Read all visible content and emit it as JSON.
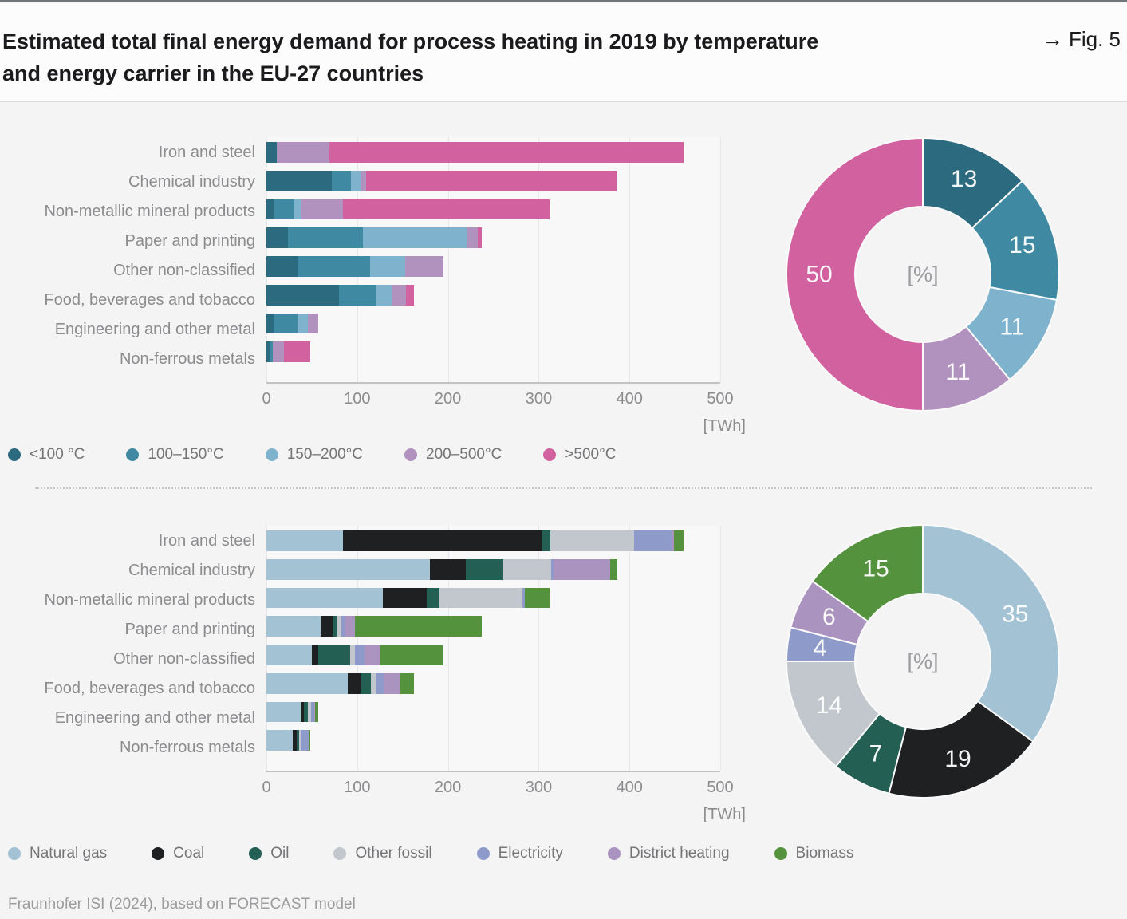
{
  "header": {
    "title": "Estimated total final energy demand for process heating in 2019 by temperature and energy carrier in the EU-27 countries",
    "title_lines": [
      "Estimated total final energy demand for process heating in 2019 by temperature",
      "and energy carrier in the EU-27 countries"
    ],
    "fig_label": "→ Fig. 5"
  },
  "footer": {
    "source": "Fraunhofer ISI (2024), based on FORECAST model"
  },
  "chart_data": [
    {
      "id": "energy-demand-by-temperature",
      "type": "bar",
      "orientation": "horizontal",
      "stacked": true,
      "unit_label": "[TWh]",
      "xlim": [
        0,
        500
      ],
      "ticks": [
        0,
        100,
        200,
        300,
        400,
        500
      ],
      "grid": true,
      "legend_position": "bottom",
      "categories": [
        "Iron and steel",
        "Chemical industry",
        "Non-metallic mineral products",
        "Paper and printing",
        "Other non-classified",
        "Food, beverages and tobacco",
        "Engineering and other metal",
        "Non-ferrous metals"
      ],
      "series": [
        {
          "name": "<100 °C",
          "color": "#2b6a7f",
          "values": [
            11,
            72,
            9,
            24,
            34,
            80,
            8,
            4
          ]
        },
        {
          "name": "100–150°C",
          "color": "#3f8aa2",
          "values": [
            0,
            21,
            21,
            82,
            80,
            41,
            26,
            3
          ]
        },
        {
          "name": "150–200°C",
          "color": "#7fb2cc",
          "values": [
            0,
            12,
            9,
            115,
            39,
            17,
            12,
            0
          ]
        },
        {
          "name": "200–500°C",
          "color": "#b192be",
          "values": [
            58,
            5,
            45,
            12,
            42,
            16,
            11,
            12
          ]
        },
        {
          "name": ">500°C",
          "color": "#d2619f",
          "values": [
            391,
            277,
            228,
            4,
            0,
            9,
            0,
            29
          ]
        }
      ]
    },
    {
      "id": "temperature-share-donut",
      "type": "pie",
      "donut": true,
      "center_label": "[%]",
      "slices": [
        {
          "label": "<100 °C",
          "value": 13,
          "color": "#2b6a7f"
        },
        {
          "label": "100–150°C",
          "value": 15,
          "color": "#3f8aa2"
        },
        {
          "label": "150–200°C",
          "value": 11,
          "color": "#7fb2cc"
        },
        {
          "label": "200–500°C",
          "value": 11,
          "color": "#b192be"
        },
        {
          "label": ">500°C",
          "value": 50,
          "color": "#d2619f"
        }
      ]
    },
    {
      "id": "energy-demand-by-carrier",
      "type": "bar",
      "orientation": "horizontal",
      "stacked": true,
      "unit_label": "[TWh]",
      "xlim": [
        0,
        500
      ],
      "ticks": [
        0,
        100,
        200,
        300,
        400,
        500
      ],
      "grid": true,
      "legend_position": "bottom",
      "categories": [
        "Iron and steel",
        "Chemical industry",
        "Non-metallic mineral products",
        "Paper and printing",
        "Other non-classified",
        "Food, beverages and tobacco",
        "Engineering and other metal",
        "Non-ferrous metals"
      ],
      "series": [
        {
          "name": "Natural gas",
          "color": "#a3c2d4",
          "values": [
            84,
            180,
            128,
            60,
            50,
            90,
            38,
            29
          ]
        },
        {
          "name": "Coal",
          "color": "#1e2022",
          "values": [
            220,
            40,
            49,
            14,
            7,
            14,
            3,
            4
          ]
        },
        {
          "name": "Oil",
          "color": "#235f53",
          "values": [
            9,
            41,
            14,
            3,
            35,
            11,
            5,
            3
          ]
        },
        {
          "name": "Other fossil",
          "color": "#c1c7cc",
          "values": [
            92,
            53,
            91,
            6,
            6,
            6,
            3,
            2
          ]
        },
        {
          "name": "Electricity",
          "color": "#8e9bca",
          "values": [
            42,
            2,
            3,
            3,
            10,
            8,
            4,
            9
          ]
        },
        {
          "name": "District heating",
          "color": "#ab93bf",
          "values": [
            2,
            63,
            0,
            12,
            17,
            19,
            1,
            0
          ]
        },
        {
          "name": "Biomass",
          "color": "#55923d",
          "values": [
            11,
            8,
            27,
            139,
            70,
            15,
            3,
            1
          ]
        }
      ]
    },
    {
      "id": "carrier-share-donut",
      "type": "pie",
      "donut": true,
      "center_label": "[%]",
      "slices": [
        {
          "label": "Natural gas",
          "value": 35,
          "color": "#a3c2d4"
        },
        {
          "label": "Coal",
          "value": 19,
          "color": "#1e2022"
        },
        {
          "label": "Oil",
          "value": 7,
          "color": "#235f53"
        },
        {
          "label": "Other fossil",
          "value": 14,
          "color": "#c1c7cc"
        },
        {
          "label": "Electricity",
          "value": 4,
          "color": "#8e9bca"
        },
        {
          "label": "District heating",
          "value": 6,
          "color": "#ab93bf"
        },
        {
          "label": "Biomass",
          "value": 15,
          "color": "#55923d"
        }
      ]
    }
  ]
}
